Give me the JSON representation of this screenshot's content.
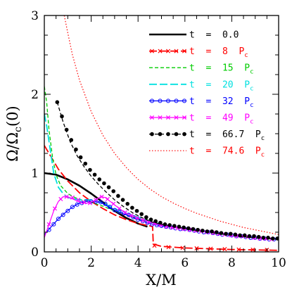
{
  "chart_data": {
    "type": "line",
    "xlabel": "X/M",
    "ylabel": "Ω/Ωc(0)",
    "ylabel_main": "Ω/Ω",
    "ylabel_sub": "c",
    "ylabel_tail": "(0)",
    "xlim": [
      0,
      10
    ],
    "ylim": [
      0,
      3
    ],
    "xticks": [
      0,
      2,
      4,
      6,
      8,
      10
    ],
    "yticks": [
      0,
      1,
      2,
      3
    ],
    "xtick_labels": [
      "0",
      "2",
      "4",
      "6",
      "8",
      "10"
    ],
    "ytick_labels": [
      "0",
      "1",
      "2",
      "3"
    ],
    "legend_position": "top-right",
    "series": [
      {
        "name": "t = 0.0",
        "label_main": "t  =  0.0",
        "label_sub": "",
        "color": "#000000",
        "style": "solid-thick",
        "marker": "none",
        "x": [
          0,
          0.5,
          1.0,
          1.5,
          2.0,
          2.5,
          3.0,
          3.5,
          4.0,
          4.4
        ],
        "y": [
          1.0,
          0.98,
          0.92,
          0.84,
          0.74,
          0.63,
          0.52,
          0.43,
          0.36,
          0.32
        ]
      },
      {
        "name": "t = 8 Pc",
        "label_main": "t  =  8  P",
        "label_sub": "c",
        "color": "#ff0000",
        "style": "dashed-long",
        "marker": "cross",
        "x": [
          0,
          0.3,
          0.6,
          1.0,
          1.5,
          2.0,
          2.5,
          3.0,
          3.5,
          4.0,
          4.5,
          4.62,
          4.65,
          5.0,
          6.0,
          7.0,
          8.0,
          9.0,
          10.0
        ],
        "y": [
          1.35,
          1.2,
          1.05,
          0.9,
          0.75,
          0.64,
          0.55,
          0.47,
          0.41,
          0.36,
          0.33,
          0.32,
          0.1,
          0.07,
          0.05,
          0.04,
          0.03,
          0.025,
          0.02
        ],
        "marker_x": [
          4.7,
          5.3,
          5.9,
          6.5,
          7.1,
          7.7,
          8.3,
          8.9,
          9.5
        ],
        "marker_y": [
          0.08,
          0.06,
          0.05,
          0.045,
          0.04,
          0.035,
          0.03,
          0.028,
          0.025
        ]
      },
      {
        "name": "t = 15 Pc",
        "label_main": "t  =  15  P",
        "label_sub": "c",
        "color": "#00cc00",
        "style": "dashed",
        "marker": "none",
        "x": [
          0,
          0.1,
          0.2,
          0.35,
          0.5,
          0.7,
          1.0,
          1.3,
          1.6,
          2.0,
          2.5,
          3.0,
          3.5,
          4.0,
          4.5,
          5.0,
          6.0,
          7.0,
          8.0,
          9.0,
          10.0
        ],
        "y": [
          2.1,
          1.9,
          1.55,
          1.2,
          0.98,
          0.84,
          0.74,
          0.69,
          0.66,
          0.63,
          0.58,
          0.52,
          0.47,
          0.42,
          0.38,
          0.35,
          0.29,
          0.25,
          0.21,
          0.18,
          0.16
        ]
      },
      {
        "name": "t = 20 Pc",
        "label_main": "t  =  20  P",
        "label_sub": "c",
        "color": "#00e0e0",
        "style": "dashed-long",
        "marker": "none",
        "x": [
          0,
          0.1,
          0.25,
          0.4,
          0.6,
          0.8,
          1.0,
          1.5,
          2.0,
          2.5,
          3.0,
          3.5,
          4.0,
          4.5,
          5.0,
          6.0,
          7.0,
          8.0,
          9.0,
          10.0
        ],
        "y": [
          1.75,
          1.6,
          1.3,
          1.0,
          0.82,
          0.74,
          0.69,
          0.66,
          0.66,
          0.62,
          0.55,
          0.49,
          0.44,
          0.39,
          0.35,
          0.29,
          0.25,
          0.21,
          0.18,
          0.16
        ]
      },
      {
        "name": "t = 32 Pc",
        "label_main": "t  =  32  P",
        "label_sub": "c",
        "color": "#0000ff",
        "style": "solid",
        "marker": "circle-open",
        "x": [
          0,
          0.3,
          0.6,
          0.9,
          1.2,
          1.5,
          1.8,
          2.1,
          2.4,
          2.7,
          3.0,
          3.5,
          4.0,
          4.5,
          5.0,
          5.5,
          6.0,
          7.0,
          8.0,
          9.0,
          10.0
        ],
        "y": [
          0.22,
          0.32,
          0.42,
          0.5,
          0.57,
          0.62,
          0.64,
          0.64,
          0.63,
          0.58,
          0.53,
          0.47,
          0.41,
          0.36,
          0.33,
          0.31,
          0.29,
          0.25,
          0.21,
          0.18,
          0.16
        ],
        "marker_x": [
          0.2,
          0.4,
          0.6,
          0.8,
          1.0,
          1.2,
          1.4,
          1.6,
          1.8,
          2.0,
          2.2,
          2.4,
          2.6,
          2.8,
          3.0,
          3.2,
          3.4,
          3.6,
          3.8,
          4.0,
          4.2,
          4.4,
          4.6,
          4.8,
          5.0,
          5.2,
          5.4,
          5.6,
          5.8,
          6.0,
          6.2,
          6.4,
          6.6,
          6.8,
          7.0,
          7.2,
          7.4,
          7.6,
          7.8,
          8.0,
          8.2,
          8.4,
          8.6,
          8.8,
          9.0,
          9.2,
          9.4,
          9.6,
          9.8
        ],
        "marker_y": [
          0.28,
          0.35,
          0.42,
          0.47,
          0.52,
          0.57,
          0.6,
          0.62,
          0.64,
          0.64,
          0.64,
          0.63,
          0.61,
          0.57,
          0.53,
          0.51,
          0.49,
          0.47,
          0.44,
          0.41,
          0.39,
          0.37,
          0.35,
          0.34,
          0.33,
          0.32,
          0.31,
          0.3,
          0.29,
          0.29,
          0.28,
          0.27,
          0.26,
          0.25,
          0.25,
          0.24,
          0.23,
          0.22,
          0.22,
          0.21,
          0.2,
          0.2,
          0.19,
          0.18,
          0.18,
          0.17,
          0.17,
          0.16,
          0.16
        ]
      },
      {
        "name": "t = 49 Pc",
        "label_main": "t  =  49  P",
        "label_sub": "c",
        "color": "#ff00ff",
        "style": "solid",
        "marker": "cross",
        "x": [
          0,
          0.2,
          0.4,
          0.6,
          0.8,
          1.0,
          1.3,
          1.6,
          1.9,
          2.2,
          2.4,
          2.6,
          2.9,
          3.2,
          3.5,
          4.0,
          4.5,
          5.0,
          5.5,
          6.0,
          7.0,
          8.0,
          9.0,
          10.0
        ],
        "y": [
          0.18,
          0.35,
          0.52,
          0.64,
          0.7,
          0.7,
          0.66,
          0.62,
          0.62,
          0.66,
          0.7,
          0.69,
          0.62,
          0.55,
          0.49,
          0.43,
          0.38,
          0.34,
          0.31,
          0.29,
          0.25,
          0.21,
          0.18,
          0.16
        ],
        "marker_x": [
          0.2,
          0.45,
          0.7,
          0.95,
          1.2,
          1.45,
          1.7,
          1.95,
          2.2,
          2.45,
          2.7,
          2.95,
          3.2,
          3.45,
          3.7,
          3.95,
          4.2,
          4.45,
          4.7,
          4.95,
          5.2,
          5.45,
          5.7,
          5.95,
          6.2,
          6.45,
          6.7,
          6.95,
          7.2,
          7.45,
          7.7,
          7.95,
          8.2,
          8.45,
          8.7,
          8.95,
          9.2,
          9.45,
          9.7
        ],
        "marker_y": [
          0.35,
          0.55,
          0.67,
          0.7,
          0.69,
          0.66,
          0.63,
          0.62,
          0.66,
          0.7,
          0.67,
          0.61,
          0.55,
          0.5,
          0.46,
          0.43,
          0.4,
          0.38,
          0.36,
          0.34,
          0.32,
          0.31,
          0.3,
          0.29,
          0.28,
          0.27,
          0.26,
          0.25,
          0.24,
          0.23,
          0.22,
          0.21,
          0.2,
          0.2,
          0.19,
          0.18,
          0.17,
          0.17,
          0.16
        ]
      },
      {
        "name": "t = 66.7 Pc",
        "label_main": "t  =  66.7  P",
        "label_sub": "c",
        "color": "#000000",
        "style": "dashed",
        "marker": "dot-filled",
        "x": [
          0.55,
          0.8,
          1.1,
          1.4,
          1.7,
          2.0,
          2.3,
          2.6,
          3.0,
          3.4,
          3.8,
          4.2,
          4.6,
          5.0,
          5.5,
          6.0,
          6.5,
          7.0,
          7.5,
          8.0,
          8.5,
          9.0,
          9.5,
          10.0
        ],
        "y": [
          1.9,
          1.65,
          1.4,
          1.22,
          1.08,
          0.96,
          0.86,
          0.77,
          0.66,
          0.57,
          0.49,
          0.43,
          0.38,
          0.35,
          0.32,
          0.3,
          0.27,
          0.25,
          0.23,
          0.21,
          0.19,
          0.18,
          0.17,
          0.16
        ],
        "marker_x": [
          0.55,
          0.75,
          0.95,
          1.15,
          1.35,
          1.55,
          1.75,
          1.95,
          2.15,
          2.35,
          2.55,
          2.75,
          2.95,
          3.15,
          3.35,
          3.55,
          3.75,
          3.95,
          4.15,
          4.35,
          4.55,
          4.75,
          4.95,
          5.15,
          5.35,
          5.55,
          5.75,
          5.95,
          6.15,
          6.35,
          6.55,
          6.75,
          6.95,
          7.15,
          7.35,
          7.55,
          7.75,
          7.95,
          8.15,
          8.35,
          8.55,
          8.75,
          8.95,
          9.15,
          9.35,
          9.55,
          9.75,
          9.95
        ],
        "marker_y": [
          1.9,
          1.72,
          1.55,
          1.42,
          1.3,
          1.2,
          1.12,
          1.04,
          0.98,
          0.92,
          0.87,
          0.82,
          0.77,
          0.71,
          0.66,
          0.61,
          0.56,
          0.52,
          0.48,
          0.44,
          0.41,
          0.39,
          0.37,
          0.35,
          0.34,
          0.33,
          0.32,
          0.31,
          0.3,
          0.29,
          0.28,
          0.27,
          0.26,
          0.26,
          0.25,
          0.24,
          0.23,
          0.23,
          0.22,
          0.21,
          0.21,
          0.2,
          0.2,
          0.19,
          0.18,
          0.18,
          0.17,
          0.17
        ]
      },
      {
        "name": "t = 74.6 Pc",
        "label_main": "t  =  74.6  P",
        "label_sub": "c",
        "color": "#ff0000",
        "style": "dotted",
        "marker": "none",
        "x": [
          0.85,
          1.0,
          1.2,
          1.5,
          2.0,
          2.5,
          3.0,
          3.5,
          4.0,
          4.5,
          5.0,
          5.5,
          6.0,
          6.5,
          7.0,
          7.5,
          8.0,
          8.5,
          9.0,
          9.5,
          10.0
        ],
        "y": [
          3.0,
          2.78,
          2.5,
          2.18,
          1.78,
          1.48,
          1.25,
          1.07,
          0.92,
          0.8,
          0.7,
          0.62,
          0.55,
          0.49,
          0.44,
          0.39,
          0.35,
          0.31,
          0.28,
          0.25,
          0.22
        ]
      }
    ]
  }
}
